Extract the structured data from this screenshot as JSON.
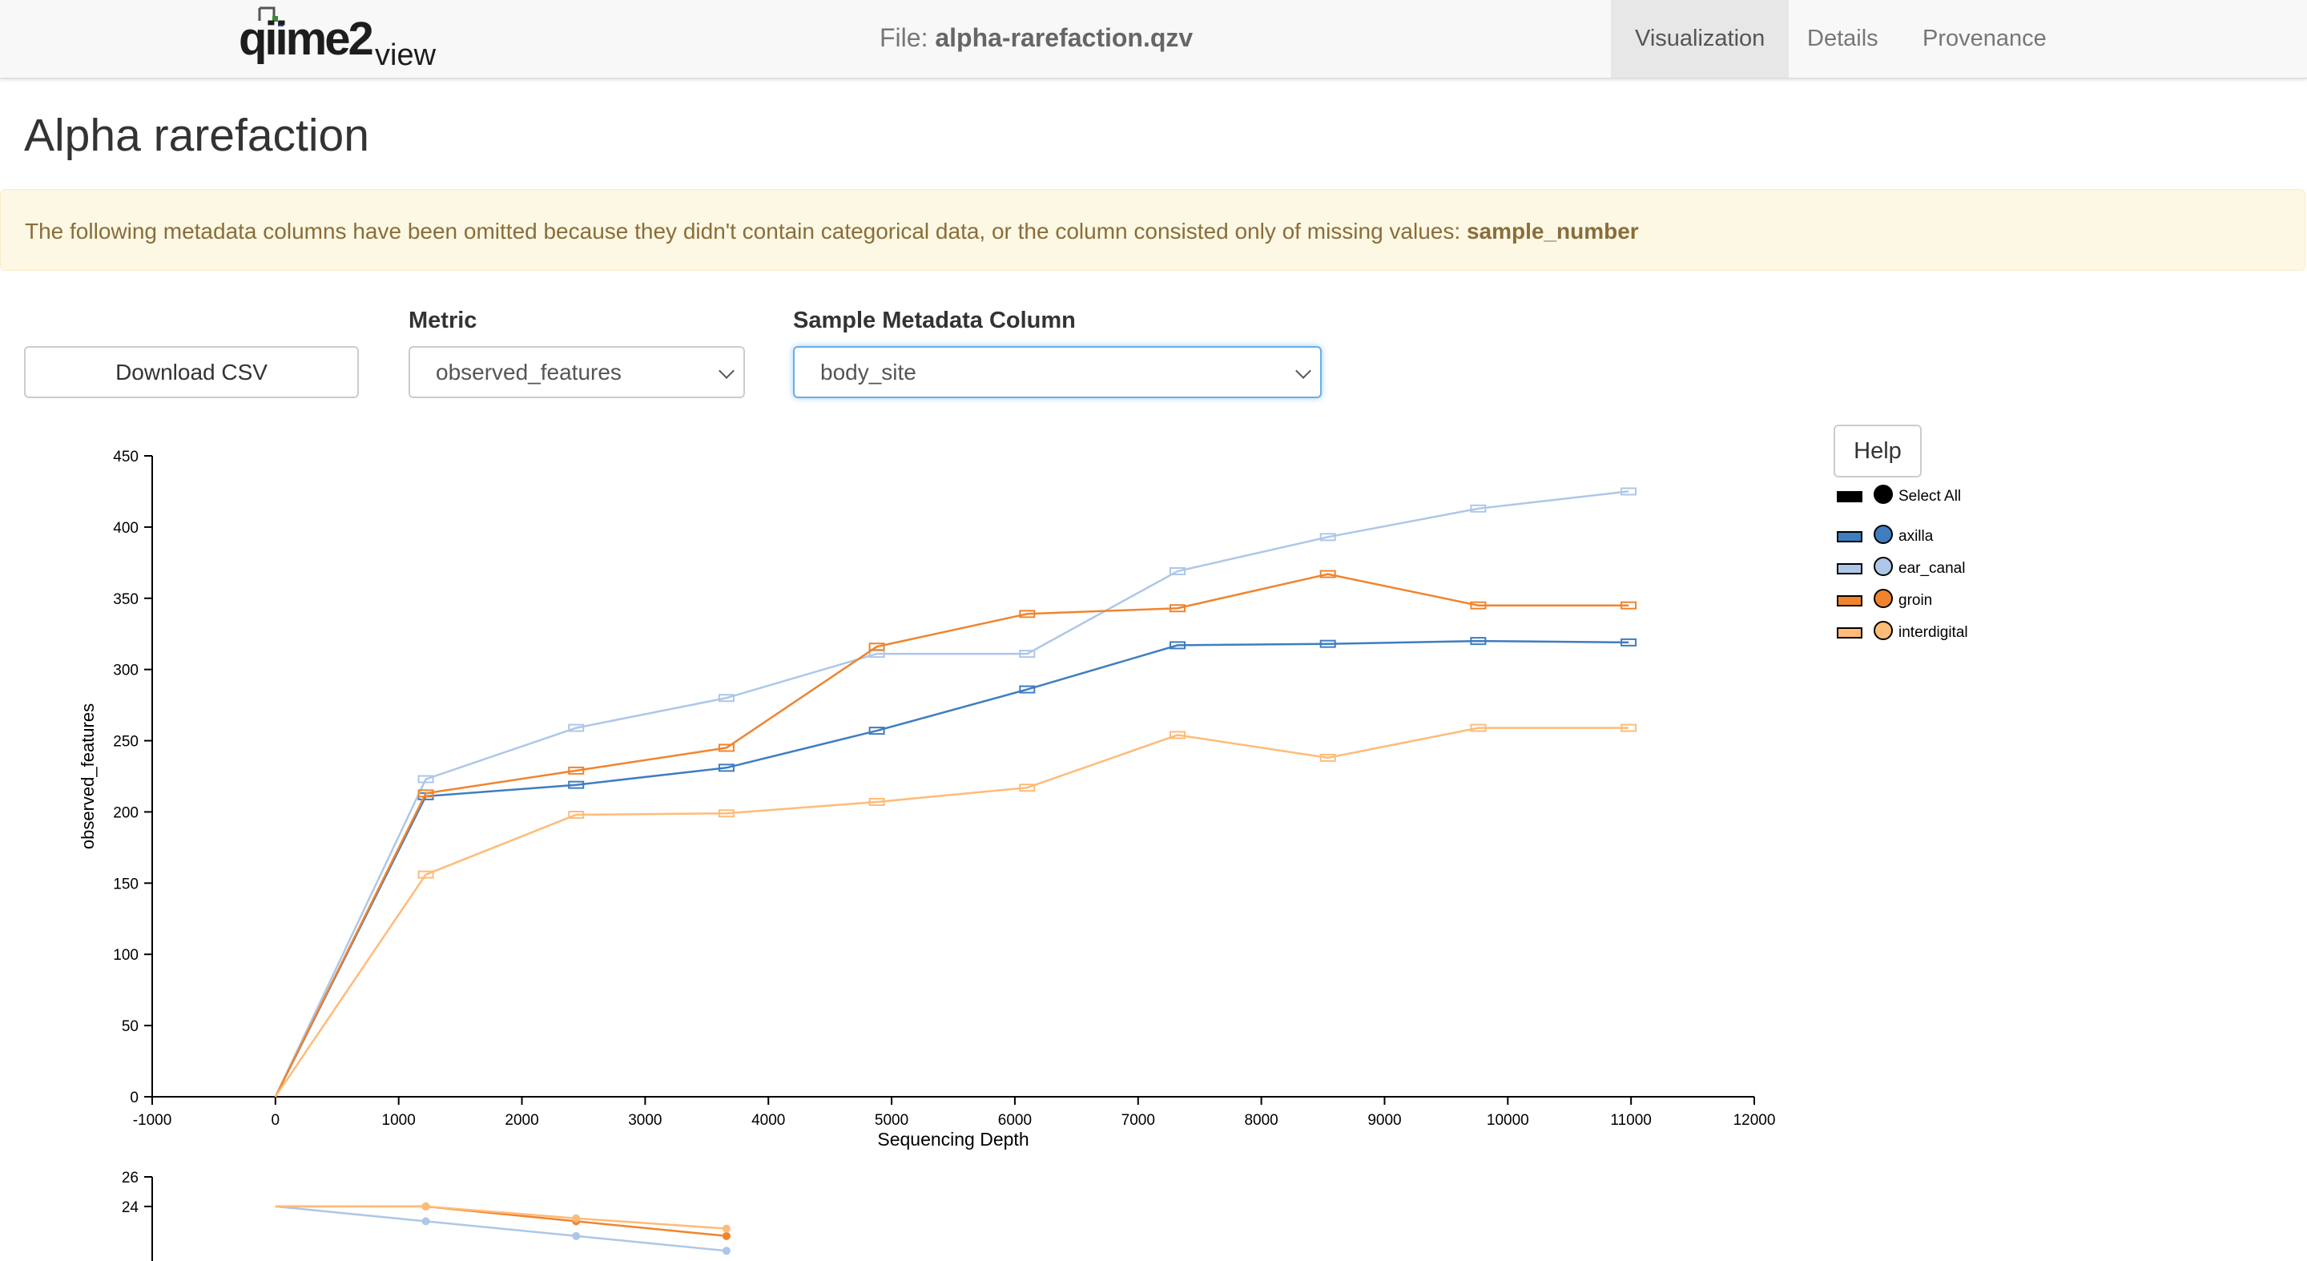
{
  "navbar": {
    "logo_text": "qiime2",
    "logo_suffix": "view",
    "file_label": "File:",
    "file_name": "alpha-rarefaction.qzv",
    "tabs": [
      "Visualization",
      "Details",
      "Provenance"
    ]
  },
  "page": {
    "title": "Alpha rarefaction"
  },
  "alert": {
    "text": "The following metadata columns have been omitted because they didn't contain categorical data, or the column consisted only of missing values:",
    "column": "sample_number"
  },
  "controls": {
    "download_label": "Download CSV",
    "metric_label": "Metric",
    "metric_value": "observed_features",
    "column_label": "Sample Metadata Column",
    "column_value": "body_site",
    "help_label": "Help"
  },
  "legend": {
    "select_all": "Select All",
    "items": [
      {
        "label": "axilla",
        "color": "#3f7dbf"
      },
      {
        "label": "ear_canal",
        "color": "#aec7e8"
      },
      {
        "label": "groin",
        "color": "#f0842d"
      },
      {
        "label": "interdigital",
        "color": "#ffbb78"
      }
    ]
  },
  "chart_data": [
    {
      "type": "line",
      "xlabel": "Sequencing Depth",
      "ylabel": "observed_features",
      "xlim": [
        -1000,
        12000
      ],
      "ylim": [
        0,
        450
      ],
      "xticks": [
        -1000,
        0,
        1000,
        2000,
        3000,
        4000,
        5000,
        6000,
        7000,
        8000,
        9000,
        10000,
        11000,
        12000
      ],
      "yticks": [
        0,
        50,
        100,
        150,
        200,
        250,
        300,
        350,
        400,
        450
      ],
      "x": [
        0,
        1220,
        2440,
        3660,
        4880,
        6100,
        7320,
        8540,
        9760,
        10980
      ],
      "grid": false,
      "series": [
        {
          "name": "axilla",
          "color": "#3f7dbf",
          "values": [
            0,
            211,
            219,
            231,
            257,
            286,
            317,
            318,
            320,
            319
          ]
        },
        {
          "name": "ear_canal",
          "color": "#aec7e8",
          "values": [
            0,
            223,
            259,
            280,
            311,
            311,
            369,
            393,
            413,
            425
          ]
        },
        {
          "name": "groin",
          "color": "#f0842d",
          "values": [
            0,
            213,
            229,
            245,
            316,
            339,
            343,
            367,
            345,
            345
          ]
        },
        {
          "name": "interdigital",
          "color": "#ffbb78",
          "values": [
            0,
            156,
            198,
            199,
            207,
            217,
            254,
            238,
            259,
            259
          ]
        }
      ]
    },
    {
      "type": "line",
      "xlim": [
        -1000,
        12000
      ],
      "ylim": [
        0,
        26
      ],
      "yticks": [
        24,
        26
      ],
      "x": [
        0,
        1220,
        2440,
        3660
      ],
      "series": [
        {
          "name": "ear_canal",
          "color": "#aec7e8",
          "values": [
            24,
            23,
            22,
            21
          ]
        },
        {
          "name": "groin",
          "color": "#f0842d",
          "values": [
            24,
            24,
            23,
            22
          ]
        },
        {
          "name": "interdigital",
          "color": "#ffbb78",
          "values": [
            24,
            24,
            23.2,
            22.5
          ]
        }
      ]
    }
  ]
}
